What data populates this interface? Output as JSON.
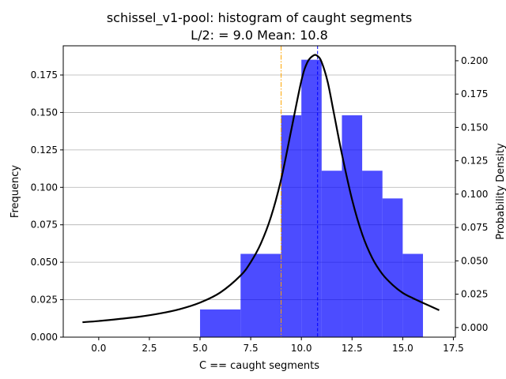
{
  "chart_data": {
    "type": "bar",
    "title_line1": "schissel_v1-pool: histogram of caught segments",
    "title_line2": "L/2: = 9.0 Mean: 10.8",
    "xlabel": "C == caught segments",
    "ylabel_left": "Frequency",
    "ylabel_right": "Probability Density",
    "xlim": [
      -1.75,
      17.6
    ],
    "ylim_left": [
      0,
      0.1945
    ],
    "ylim_right": [
      -0.0072,
      0.2112
    ],
    "grid": true,
    "x_ticks": [
      0.0,
      2.5,
      5.0,
      7.5,
      10.0,
      12.5,
      15.0,
      17.5
    ],
    "x_tick_labels": [
      "0.0",
      "2.5",
      "5.0",
      "7.5",
      "10.0",
      "12.5",
      "15.0",
      "17.5"
    ],
    "y_left_ticks": [
      0.0,
      0.025,
      0.05,
      0.075,
      0.1,
      0.125,
      0.15,
      0.175
    ],
    "y_left_tick_labels": [
      "0.000",
      "0.025",
      "0.050",
      "0.075",
      "0.100",
      "0.125",
      "0.150",
      "0.175"
    ],
    "y_right_ticks": [
      0.0,
      0.025,
      0.05,
      0.075,
      0.1,
      0.125,
      0.15,
      0.175,
      0.2
    ],
    "y_right_tick_labels": [
      "0.000",
      "0.025",
      "0.050",
      "0.075",
      "0.100",
      "0.125",
      "0.150",
      "0.175",
      "0.200"
    ],
    "histogram": {
      "color": "#0000ff",
      "bins": [
        {
          "x0": 5,
          "x1": 7,
          "value": 0.0185
        },
        {
          "x0": 7,
          "x1": 9,
          "value": 0.0556
        },
        {
          "x0": 9,
          "x1": 10,
          "value": 0.1481
        },
        {
          "x0": 10,
          "x1": 11,
          "value": 0.1852
        },
        {
          "x0": 11,
          "x1": 12,
          "value": 0.1111
        },
        {
          "x0": 12,
          "x1": 13,
          "value": 0.1481
        },
        {
          "x0": 13,
          "x1": 14,
          "value": 0.1111
        },
        {
          "x0": 14,
          "x1": 15,
          "value": 0.0926
        },
        {
          "x0": 15,
          "x1": 16,
          "value": 0.0556
        }
      ]
    },
    "density_curve": {
      "color": "#000000",
      "x": [
        -0.8,
        0.0,
        1.0,
        2.0,
        3.0,
        4.0,
        5.0,
        6.0,
        7.0,
        7.5,
        8.0,
        8.5,
        9.0,
        9.5,
        10.0,
        10.3,
        10.6,
        10.8,
        11.0,
        11.3,
        11.6,
        12.0,
        12.5,
        13.0,
        13.5,
        14.0,
        14.5,
        15.0,
        15.5,
        16.0,
        16.8
      ],
      "y": [
        0.004,
        0.0049,
        0.0064,
        0.0081,
        0.0105,
        0.0138,
        0.0187,
        0.0263,
        0.039,
        0.049,
        0.063,
        0.083,
        0.111,
        0.148,
        0.185,
        0.199,
        0.204,
        0.2035,
        0.199,
        0.184,
        0.161,
        0.13,
        0.096,
        0.07,
        0.052,
        0.04,
        0.032,
        0.026,
        0.022,
        0.0185,
        0.013
      ]
    },
    "vlines": [
      {
        "name": "L/2",
        "x": 9.0,
        "color": "#ffa500",
        "style": "dashdot"
      },
      {
        "name": "Mean",
        "x": 10.8,
        "color": "#0000ff",
        "style": "dashed"
      }
    ]
  }
}
